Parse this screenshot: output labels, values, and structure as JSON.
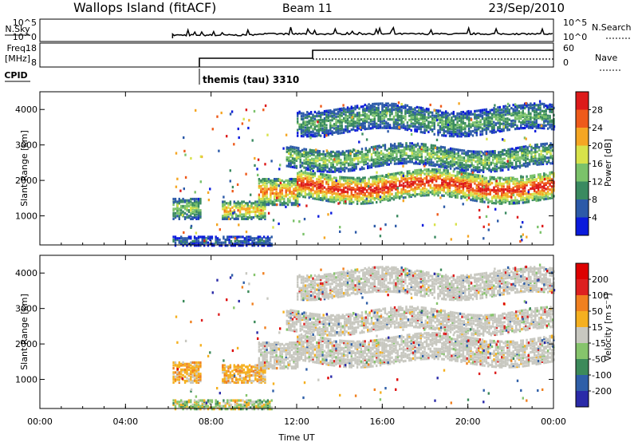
{
  "header": {
    "title": "Wallops Island (fitACF)",
    "beam": "Beam 11",
    "date": "23/Sep/2010"
  },
  "summary": {
    "nsky_label": "N.Sky",
    "nsky_ticks": [
      "10^5",
      "10^0"
    ],
    "nsearch_label": "N.Search",
    "nsearch_ticks": [
      "10^5",
      "10^0"
    ],
    "freq_label": "Freq.",
    "freq_unit": "[MHz]",
    "freq_ticks": [
      "18",
      "8"
    ],
    "nave_label": "Nave",
    "nave_ticks": [
      "60",
      "0"
    ],
    "cpid_label": "CPID",
    "cpid_text": "themis (tau) 3310"
  },
  "chart_data": [
    {
      "type": "heatmap",
      "name": "power",
      "ylabel": "Slant Range [km]",
      "yticks": [
        1000,
        2000,
        3000,
        4000
      ],
      "ylim": [
        180,
        4500
      ],
      "colorbar_label": "Power [dB]",
      "colorbar_ticks": [
        28,
        24,
        20,
        16,
        12,
        8,
        4
      ],
      "colors": [
        "#0a1adc",
        "#2c5aa8",
        "#3a8a60",
        "#7bc26a",
        "#d8e24a",
        "#f5a623",
        "#ee5a1a",
        "#dd1a1a"
      ],
      "bands": [
        {
          "t": [
            6.2,
            10.8
          ],
          "r": [
            200,
            450
          ],
          "power": 6
        },
        {
          "t": [
            6.2,
            7.5
          ],
          "r": [
            950,
            1550
          ],
          "power": 12
        },
        {
          "t": [
            8.5,
            10.5
          ],
          "r": [
            950,
            1450
          ],
          "power": 18
        },
        {
          "t": [
            10.2,
            12.0
          ],
          "r": [
            1350,
            2100
          ],
          "power": 20
        },
        {
          "t": [
            12.0,
            24.0
          ],
          "r": [
            1500,
            2250
          ],
          "power": 24
        },
        {
          "t": [
            11.5,
            24.0
          ],
          "r": [
            2400,
            3000
          ],
          "power": 12
        },
        {
          "t": [
            12.0,
            24.0
          ],
          "r": [
            3400,
            4100
          ],
          "power": 10
        }
      ]
    },
    {
      "type": "heatmap",
      "name": "velocity",
      "ylabel": "Slant Range [km]",
      "yticks": [
        1000,
        2000,
        3000,
        4000
      ],
      "ylim": [
        180,
        4500
      ],
      "colorbar_label": "Velocity [m s⁻¹]",
      "colorbar_ticks": [
        200,
        100,
        50,
        15,
        -15,
        -50,
        -100,
        -200
      ],
      "colors": [
        "#2a2aa8",
        "#2f5fa8",
        "#3c8a5a",
        "#86c46c",
        "#c8c8c0",
        "#f5b020",
        "#f08020",
        "#dd2020",
        "#dd0000"
      ],
      "x_ticks": [
        "00:00",
        "04:00",
        "08:00",
        "12:00",
        "16:00",
        "20:00",
        "00:00"
      ],
      "xlabel": "Time UT",
      "xlim": [
        0,
        24
      ]
    }
  ]
}
